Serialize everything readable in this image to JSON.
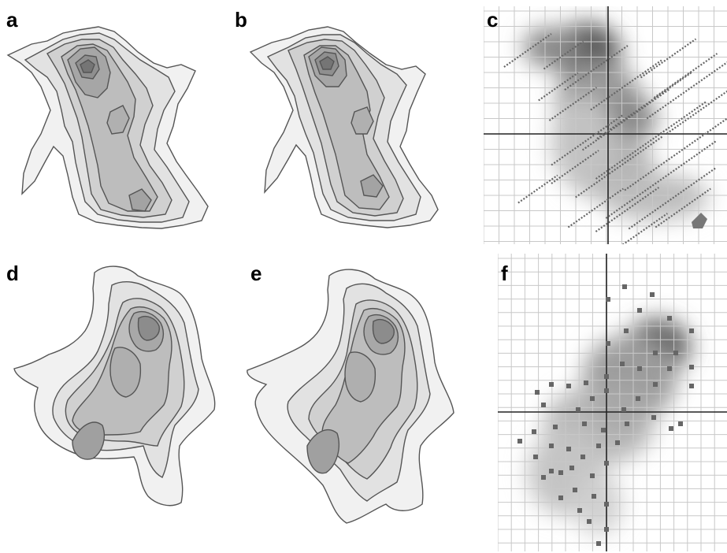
{
  "panels": [
    {
      "label": "a"
    },
    {
      "label": "b"
    },
    {
      "label": "c"
    },
    {
      "label": "d"
    },
    {
      "label": "e"
    },
    {
      "label": "f"
    }
  ],
  "colors": {
    "contour_line": "#555555",
    "fill_light": "#f0f0f0",
    "fill_dark": "#6a6a6a",
    "grid": "#c8c8c8",
    "axis": "#222222",
    "marker": "#666666"
  }
}
